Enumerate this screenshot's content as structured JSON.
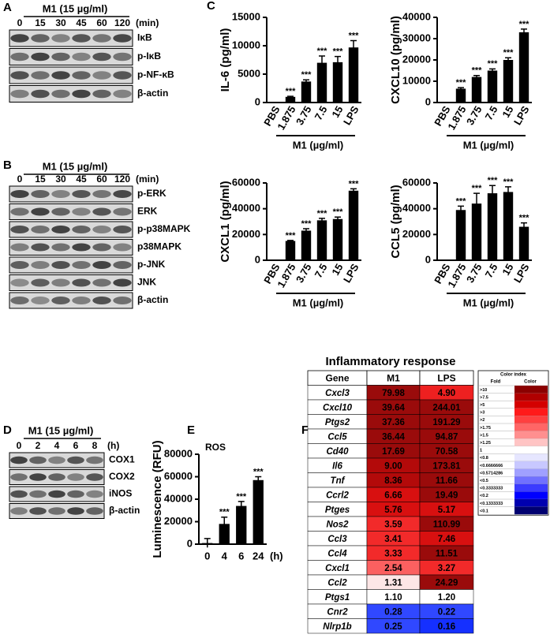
{
  "panels": [
    "A",
    "B",
    "C",
    "D",
    "E",
    "F"
  ],
  "blots": [
    {
      "header": "M1 (15 µg/ml)",
      "lanes": [
        "0",
        "15",
        "30",
        "45",
        "60",
        "120"
      ],
      "unit": "(min)",
      "rows": [
        "IκB",
        "p-IκB",
        "p-NF-κB",
        "β-actin"
      ]
    },
    {
      "header": "M1 (15 µg/ml)",
      "lanes": [
        "0",
        "15",
        "30",
        "45",
        "60",
        "120"
      ],
      "unit": "(min)",
      "rows": [
        "p-ERK",
        "ERK",
        "p-p38MAPK",
        "p38MAPK",
        "p-JNK",
        "JNK",
        "β-actin"
      ]
    },
    {
      "header": "M1 (15 µg/ml)",
      "lanes": [
        "0",
        "2",
        "4",
        "6",
        "8"
      ],
      "unit": "(h)",
      "rows": [
        "COX1",
        "COX2",
        "iNOS",
        "β-actin"
      ]
    }
  ],
  "chart_data": [
    {
      "type": "bar",
      "ylabel": "IL-6 (pg/ml)",
      "categories": [
        "PBS",
        "1.875",
        "3.75",
        "7.5",
        "15",
        "LPS"
      ],
      "values": [
        0,
        1000,
        3700,
        7000,
        7100,
        9700
      ],
      "errors": [
        0,
        100,
        300,
        1200,
        1000,
        1200
      ],
      "annotations": [
        null,
        "***",
        "***",
        "***",
        "***",
        "***"
      ],
      "xgroup_label": "M1 (µg/ml)",
      "color": "#000000",
      "ylim": [
        0,
        15000
      ],
      "yticks": [
        0,
        5000,
        10000,
        15000
      ]
    },
    {
      "type": "bar",
      "ylabel": "CXCL10 (pg/ml)",
      "categories": [
        "PBS",
        "1.875",
        "3.75",
        "7.5",
        "15",
        "LPS"
      ],
      "values": [
        0,
        6500,
        12000,
        15000,
        20000,
        33000
      ],
      "errors": [
        0,
        500,
        700,
        800,
        1000,
        1500
      ],
      "annotations": [
        null,
        "***",
        "***",
        "***",
        "***",
        "***"
      ],
      "xgroup_label": "M1 (µg/ml)",
      "color": "#000000",
      "ylim": [
        0,
        40000
      ],
      "yticks": [
        0,
        10000,
        20000,
        30000,
        40000
      ]
    },
    {
      "type": "bar",
      "ylabel": "CXCL1 (pg/ml)",
      "categories": [
        "PBS",
        "1.875",
        "3.75",
        "7.5",
        "15",
        "LPS"
      ],
      "values": [
        0,
        15000,
        23000,
        31000,
        32000,
        54000
      ],
      "errors": [
        0,
        400,
        1500,
        1500,
        1500,
        1500
      ],
      "annotations": [
        null,
        "***",
        "***",
        "***",
        "***",
        "***"
      ],
      "xgroup_label": "M1 (µg/ml)",
      "color": "#000000",
      "ylim": [
        0,
        60000
      ],
      "yticks": [
        0,
        20000,
        40000,
        60000
      ]
    },
    {
      "type": "bar",
      "ylabel": "CCL5 (pg/ml)",
      "categories": [
        "PBS",
        "1.875",
        "3.75",
        "7.5",
        "15",
        "LPS"
      ],
      "values": [
        0,
        39000,
        44000,
        52000,
        53000,
        26000
      ],
      "errors": [
        0,
        3000,
        8000,
        6000,
        4000,
        3000
      ],
      "annotations": [
        null,
        "***",
        "***",
        "***",
        "***",
        "***"
      ],
      "xgroup_label": "M1 (µg/ml)",
      "color": "#000000",
      "ylim": [
        0,
        60000
      ],
      "yticks": [
        0,
        20000,
        40000,
        60000
      ]
    },
    {
      "type": "bar",
      "title": "ROS",
      "ylabel": "Luminescence (RFU)",
      "categories": [
        "0",
        "4",
        "6",
        "24"
      ],
      "xunit": "(h)",
      "values": [
        1000,
        18000,
        34000,
        57000
      ],
      "errors": [
        4000,
        6000,
        4000,
        3000
      ],
      "annotations": [
        null,
        "***",
        "***",
        "***"
      ],
      "color": "#000000",
      "ylim": [
        0,
        80000
      ],
      "yticks": [
        0,
        20000,
        40000,
        60000,
        80000
      ]
    }
  ],
  "heatmap": {
    "title": "Inflammatory response",
    "columns": [
      "Gene",
      "M1",
      "LPS"
    ],
    "rows": [
      [
        "Cxcl3",
        "79.98",
        "4.90"
      ],
      [
        "Cxcl10",
        "39.64",
        "244.01"
      ],
      [
        "Ptgs2",
        "37.36",
        "191.29"
      ],
      [
        "Ccl5",
        "36.44",
        "94.87"
      ],
      [
        "Cd40",
        "17.69",
        "70.58"
      ],
      [
        "Il6",
        "9.00",
        "173.81"
      ],
      [
        "Tnf",
        "8.36",
        "11.66"
      ],
      [
        "Ccrl2",
        "6.66",
        "19.49"
      ],
      [
        "Ptges",
        "5.76",
        "5.17"
      ],
      [
        "Nos2",
        "3.59",
        "110.99"
      ],
      [
        "Ccl3",
        "3.41",
        "7.46"
      ],
      [
        "Ccl4",
        "3.33",
        "11.51"
      ],
      [
        "Cxcl1",
        "2.54",
        "3.27"
      ],
      [
        "Ccl2",
        "1.31",
        "24.29"
      ],
      [
        "Ptgs1",
        "1.10",
        "1.20"
      ],
      [
        "Cnr2",
        "0.28",
        "0.22"
      ],
      [
        "Nlrp1b",
        "0.25",
        "0.16"
      ]
    ],
    "cell_colors": [
      [
        "#9a0b0b",
        "#ee2020"
      ],
      [
        "#9a0b0b",
        "#9a0b0b"
      ],
      [
        "#9a0b0b",
        "#9a0b0b"
      ],
      [
        "#9a0b0b",
        "#9a0b0b"
      ],
      [
        "#9a0b0b",
        "#9a0b0b"
      ],
      [
        "#b30a0a",
        "#9a0b0b"
      ],
      [
        "#b30a0a",
        "#9a0b0b"
      ],
      [
        "#d81010",
        "#9a0b0b"
      ],
      [
        "#d81010",
        "#d81010"
      ],
      [
        "#f22a2a",
        "#9a0b0b"
      ],
      [
        "#f22a2a",
        "#d81010"
      ],
      [
        "#f22a2a",
        "#9a0b0b"
      ],
      [
        "#fb6060",
        "#f22a2a"
      ],
      [
        "#fde6e6",
        "#9a0b0b"
      ],
      [
        "#ffffff",
        "#ffffff"
      ],
      [
        "#3048ff",
        "#3048ff"
      ],
      [
        "#3048ff",
        "#1530ff"
      ]
    ],
    "legend": {
      "title": "Color index",
      "columns": [
        "Fold",
        "Color"
      ],
      "entries": [
        {
          "label": ">10",
          "color": "#8b0000"
        },
        {
          "label": ">7.5",
          "color": "#b00000"
        },
        {
          "label": ">5",
          "color": "#d40000"
        },
        {
          "label": ">3",
          "color": "#ff1a1a"
        },
        {
          "label": ">2",
          "color": "#ff4040"
        },
        {
          "label": ">1.75",
          "color": "#ff6666"
        },
        {
          "label": ">1.5",
          "color": "#ff8f8f"
        },
        {
          "label": ">1.25",
          "color": "#ffc4c4"
        },
        {
          "label": "1",
          "color": "#ffffff"
        },
        {
          "label": "<0.8",
          "color": "#e6e6ff"
        },
        {
          "label": "<0.6666666",
          "color": "#c8c8ff"
        },
        {
          "label": "<0.5714286",
          "color": "#a0a0ff"
        },
        {
          "label": "<0.5",
          "color": "#7070ff"
        },
        {
          "label": "<0.3333333",
          "color": "#3b3bff"
        },
        {
          "label": "<0.2",
          "color": "#0000ff"
        },
        {
          "label": "<0.1333333",
          "color": "#0000b0"
        },
        {
          "label": "<0.1",
          "color": "#000070"
        }
      ]
    }
  }
}
